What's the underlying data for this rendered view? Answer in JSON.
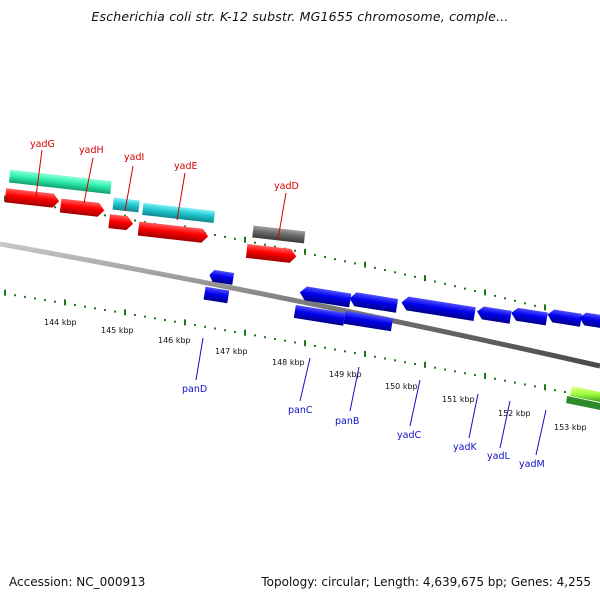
{
  "title": "Escherichia coli str. K-12 substr. MG1655 chromosome, comple...",
  "footer": {
    "accession": "Accession: NC_000913",
    "topology": "Topology: circular; Length: 4,639,675 bp; Genes: 4,255"
  },
  "colors": {
    "gene_top": "#d40000",
    "gene_bottom": "#1010c8",
    "tick": "#1a7a1a",
    "backbone": "#8a8a8a",
    "cds_red": "#ff0000",
    "cds_blue": "#0000ee",
    "cds_teal": "#20c8d0",
    "cds_aqua": "#30f0b0",
    "cds_grey": "#6a6a6a",
    "cds_lime": "#a0ff40"
  },
  "kbp_labels": [
    "144 kbp",
    "145 kbp",
    "146 kbp",
    "147 kbp",
    "148 kbp",
    "149 kbp",
    "150 kbp",
    "151 kbp",
    "152 kbp",
    "153 kbp"
  ],
  "top_genes": [
    "yadG",
    "yadH",
    "yadI",
    "yadE",
    "yadD"
  ],
  "bottom_genes": [
    "panD",
    "panC",
    "panB",
    "yadC",
    "yadK",
    "yadL",
    "yadM"
  ]
}
